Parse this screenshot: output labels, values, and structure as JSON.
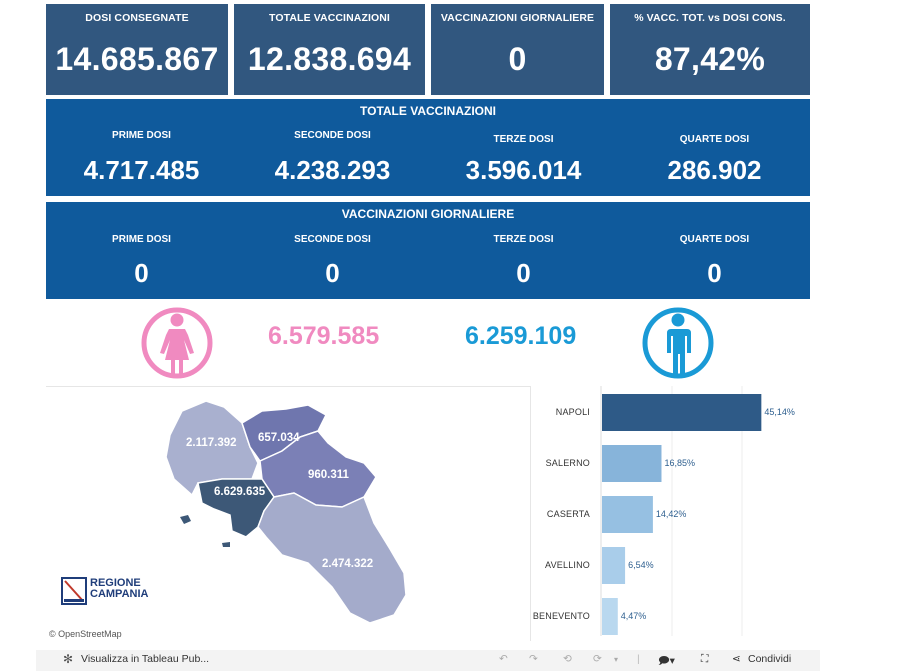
{
  "kpis": [
    {
      "title": "DOSI  CONSEGNATE",
      "value": "14.685.867"
    },
    {
      "title": "TOTALE VACCINAZIONI",
      "value": "12.838.694"
    },
    {
      "title": "VACCINAZIONI GIORNALIERE",
      "value": "0"
    },
    {
      "title": "% VACC. TOT. vs DOSI CONS.",
      "value": "87,42%"
    }
  ],
  "totale": {
    "title": "TOTALE VACCINAZIONI",
    "cols": [
      {
        "label": "PRIME DOSI",
        "value": "4.717.485"
      },
      {
        "label": "SECONDE DOSI",
        "value": "4.238.293"
      },
      {
        "label": "TERZE DOSI",
        "value": "3.596.014"
      },
      {
        "label": "QUARTE DOSI",
        "value": "286.902"
      }
    ]
  },
  "giornaliere": {
    "title": "VACCINAZIONI GIORNALIERE",
    "cols": [
      {
        "label": "PRIME DOSI",
        "value": "0"
      },
      {
        "label": "SECONDE DOSI",
        "value": "0"
      },
      {
        "label": "TERZE DOSI",
        "value": "0"
      },
      {
        "label": "QUARTE DOSI",
        "value": "0"
      }
    ]
  },
  "gender": {
    "female_value": "6.579.585",
    "male_value": "6.259.109",
    "female_color": "#f08ac0",
    "male_color": "#1a9ad6",
    "female_icon": "female-person-icon",
    "male_icon": "male-person-icon"
  },
  "map": {
    "labels": [
      "2.117.392",
      "657.034",
      "960.311",
      "6.629.635",
      "2.474.322"
    ],
    "logo_line1": "REGIONE",
    "logo_line2": "CAMPANIA",
    "attribution": "© OpenStreetMap"
  },
  "chart_data": {
    "type": "bar",
    "orientation": "horizontal",
    "categories": [
      "NAPOLI",
      "SALERNO",
      "CASERTA",
      "AVELLINO",
      "BENEVENTO"
    ],
    "values": [
      45.14,
      16.85,
      14.42,
      6.54,
      4.47
    ],
    "value_labels": [
      "45,14%",
      "16,85%",
      "14,42%",
      "6,54%",
      "4,47%"
    ],
    "colors": [
      "#2e5a87",
      "#87b4da",
      "#96c0e2",
      "#a9cdea",
      "#b9d8ef"
    ],
    "xlim": [
      0,
      60
    ]
  },
  "toolbar": {
    "view_label": "Visualizza in Tableau Pub...",
    "share_label": "Condividi"
  }
}
